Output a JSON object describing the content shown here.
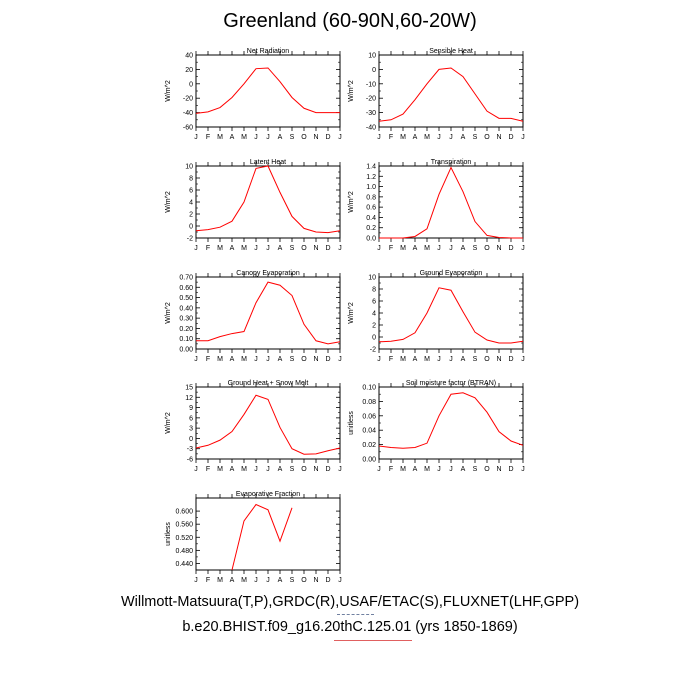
{
  "page": {
    "title": "Greenland (60-90N,60-20W)",
    "footer_line1": "Willmott-Matsuura(T,P),GRDC(R),USAF/ETAC(S),FLUXNET(LHF,GPP)",
    "footer_line2": "b.e20.BHIST.f09_g16.20thC.125.01 (yrs 1850-1869)",
    "line_color": "#ff0000"
  },
  "chart_data": [
    {
      "type": "line",
      "title": "Net Radiation",
      "ylabel": "W/m^2",
      "categories": [
        "J",
        "F",
        "M",
        "A",
        "M",
        "J",
        "J",
        "A",
        "S",
        "O",
        "N",
        "D",
        "J"
      ],
      "ylim": [
        -60,
        40
      ],
      "yticks": [
        -60,
        -40,
        -20,
        0,
        20,
        40
      ],
      "ytick_labels": [
        "-60",
        "-40",
        "-20",
        "0",
        "20",
        "40"
      ],
      "values": [
        -41,
        -39,
        -33,
        -19,
        0,
        21,
        22,
        3,
        -19,
        -34,
        -40,
        -40,
        -40
      ]
    },
    {
      "type": "line",
      "title": "Sensible Heat",
      "ylabel": "W/m^2",
      "categories": [
        "J",
        "F",
        "M",
        "A",
        "M",
        "J",
        "J",
        "A",
        "S",
        "O",
        "N",
        "D",
        "J"
      ],
      "ylim": [
        -40,
        10
      ],
      "yticks": [
        -40,
        -30,
        -20,
        -10,
        0,
        10
      ],
      "ytick_labels": [
        "-40",
        "-30",
        "-20",
        "-10",
        "0",
        "10"
      ],
      "values": [
        -36,
        -35,
        -31,
        -21,
        -10,
        0,
        1,
        -5,
        -17,
        -29,
        -34,
        -34,
        -36
      ]
    },
    {
      "type": "line",
      "title": "Latent Heat",
      "ylabel": "W/m^2",
      "categories": [
        "J",
        "F",
        "M",
        "A",
        "M",
        "J",
        "J",
        "A",
        "S",
        "O",
        "N",
        "D",
        "J"
      ],
      "ylim": [
        -2,
        10
      ],
      "yticks": [
        -2,
        0,
        2,
        4,
        6,
        8,
        10
      ],
      "ytick_labels": [
        "-2",
        "0",
        "2",
        "4",
        "6",
        "8",
        "10"
      ],
      "values": [
        -0.8,
        -0.6,
        -0.2,
        0.8,
        4.0,
        9.6,
        10.0,
        5.6,
        1.6,
        -0.4,
        -1.0,
        -1.1,
        -0.8
      ]
    },
    {
      "type": "line",
      "title": "Transpiration",
      "ylabel": "W/m^2",
      "categories": [
        "J",
        "F",
        "M",
        "A",
        "M",
        "J",
        "J",
        "A",
        "S",
        "O",
        "N",
        "D",
        "J"
      ],
      "ylim": [
        0,
        1.4
      ],
      "yticks": [
        0,
        0.2,
        0.4,
        0.6,
        0.8,
        1.0,
        1.2,
        1.4
      ],
      "ytick_labels": [
        "0.0",
        "0.2",
        "0.4",
        "0.6",
        "0.8",
        "1.0",
        "1.2",
        "1.4"
      ],
      "values": [
        0.0,
        0.0,
        0.0,
        0.03,
        0.18,
        0.85,
        1.37,
        0.9,
        0.32,
        0.05,
        0.01,
        0.0,
        0.0
      ]
    },
    {
      "type": "line",
      "title": "Canopy Evaporation",
      "ylabel": "W/m^2",
      "categories": [
        "J",
        "F",
        "M",
        "A",
        "M",
        "J",
        "J",
        "A",
        "S",
        "O",
        "N",
        "D",
        "J"
      ],
      "ylim": [
        0,
        0.7
      ],
      "yticks": [
        0,
        0.1,
        0.2,
        0.3,
        0.4,
        0.5,
        0.6,
        0.7
      ],
      "ytick_labels": [
        "0.00",
        "0.10",
        "0.20",
        "0.30",
        "0.40",
        "0.50",
        "0.60",
        "0.70"
      ],
      "values": [
        0.08,
        0.08,
        0.12,
        0.15,
        0.17,
        0.45,
        0.65,
        0.62,
        0.52,
        0.24,
        0.08,
        0.05,
        0.07
      ]
    },
    {
      "type": "line",
      "title": "Ground Evaporation",
      "ylabel": "W/m^2",
      "categories": [
        "J",
        "F",
        "M",
        "A",
        "M",
        "J",
        "J",
        "A",
        "S",
        "O",
        "N",
        "D",
        "J"
      ],
      "ylim": [
        -2,
        10
      ],
      "yticks": [
        -2,
        0,
        2,
        4,
        6,
        8,
        10
      ],
      "ytick_labels": [
        "-2",
        "0",
        "2",
        "4",
        "6",
        "8",
        "10"
      ],
      "values": [
        -0.8,
        -0.7,
        -0.4,
        0.7,
        4.0,
        8.2,
        7.8,
        4.2,
        0.8,
        -0.5,
        -1.0,
        -1.0,
        -0.7
      ]
    },
    {
      "type": "line",
      "title": "Ground Heat + Snow Melt",
      "ylabel": "W/m^2",
      "categories": [
        "J",
        "F",
        "M",
        "A",
        "M",
        "J",
        "J",
        "A",
        "S",
        "O",
        "N",
        "D",
        "J"
      ],
      "ylim": [
        -6,
        15
      ],
      "yticks": [
        -6,
        -3,
        0,
        3,
        6,
        9,
        12,
        15
      ],
      "ytick_labels": [
        "-6",
        "-3",
        "0",
        "3",
        "6",
        "9",
        "12",
        "15"
      ],
      "values": [
        -2.8,
        -2.0,
        -0.5,
        2.0,
        7.0,
        12.6,
        11.4,
        3.2,
        -3.0,
        -4.6,
        -4.5,
        -3.6,
        -2.8
      ]
    },
    {
      "type": "line",
      "title": "Soil moisture factor (BTRAN)",
      "ylabel": "unitless",
      "categories": [
        "J",
        "F",
        "M",
        "A",
        "M",
        "J",
        "J",
        "A",
        "S",
        "O",
        "N",
        "D",
        "J"
      ],
      "ylim": [
        0,
        0.1
      ],
      "yticks": [
        0,
        0.02,
        0.04,
        0.06,
        0.08,
        0.1
      ],
      "ytick_labels": [
        "0.00",
        "0.02",
        "0.04",
        "0.06",
        "0.08",
        "0.10"
      ],
      "values": [
        0.018,
        0.016,
        0.015,
        0.016,
        0.022,
        0.06,
        0.09,
        0.092,
        0.085,
        0.065,
        0.038,
        0.025,
        0.019
      ]
    },
    {
      "type": "line",
      "title": "Evaporative Fraction",
      "ylabel": "unitless",
      "categories": [
        "J",
        "F",
        "M",
        "A",
        "M",
        "J",
        "J",
        "A",
        "S",
        "O",
        "N",
        "D",
        "J"
      ],
      "ylim": [
        0.42,
        0.64
      ],
      "yticks": [
        0.44,
        0.48,
        0.52,
        0.56,
        0.6
      ],
      "ytick_labels": [
        "0.440",
        "0.480",
        "0.520",
        "0.560",
        "0.600"
      ],
      "values": [
        null,
        null,
        null,
        0.42,
        0.57,
        0.62,
        0.604,
        0.508,
        0.61,
        null,
        null,
        null,
        null
      ]
    }
  ]
}
